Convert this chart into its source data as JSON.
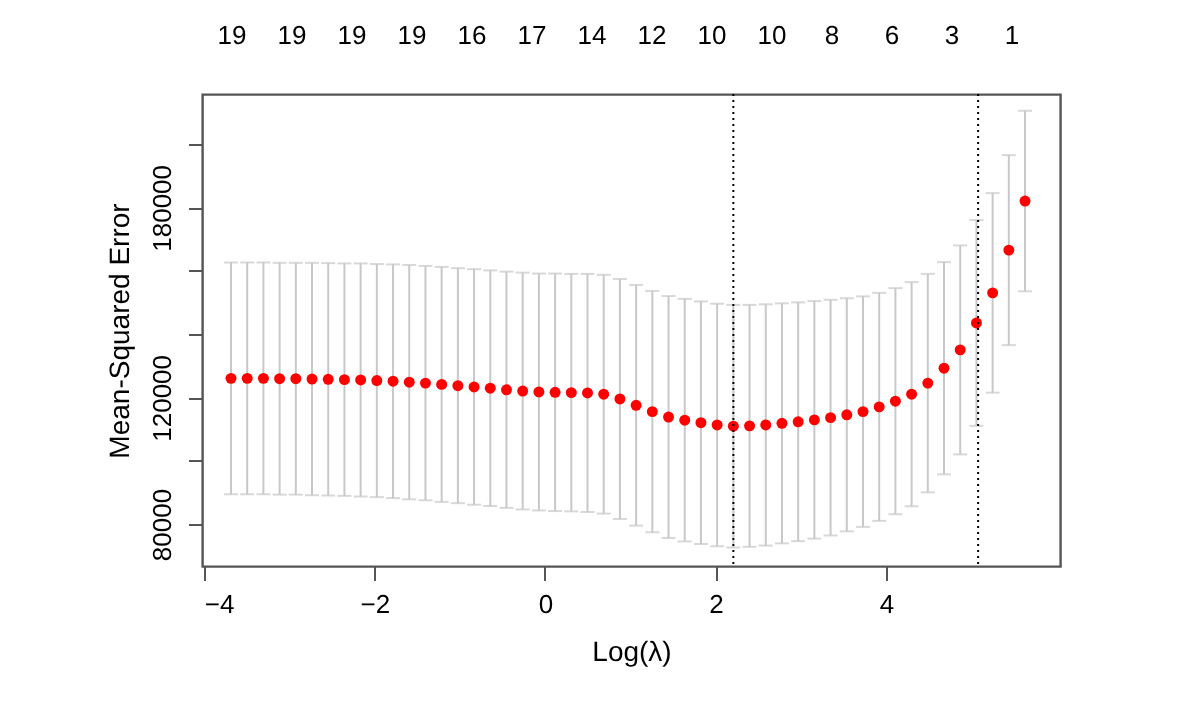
{
  "chart_data": {
    "type": "scatter",
    "xlabel": "Log(λ)",
    "ylabel": "Mean-Squared Error",
    "x": [
      -3.68,
      -3.49,
      -3.3,
      -3.11,
      -2.92,
      -2.73,
      -2.54,
      -2.35,
      -2.16,
      -1.97,
      -1.78,
      -1.59,
      -1.4,
      -1.21,
      -1.02,
      -0.83,
      -0.64,
      -0.45,
      -0.26,
      -0.07,
      0.12,
      0.31,
      0.5,
      0.69,
      0.88,
      1.07,
      1.26,
      1.45,
      1.64,
      1.83,
      2.02,
      2.21,
      2.4,
      2.59,
      2.78,
      2.97,
      3.16,
      3.35,
      3.54,
      3.73,
      3.92,
      4.11,
      4.3,
      4.49,
      4.68,
      4.87,
      5.06,
      5.25,
      5.44,
      5.63
    ],
    "series": [
      {
        "color": "#ff0000",
        "values": [
          126000,
          126000,
          126000,
          125900,
          125900,
          125800,
          125700,
          125600,
          125500,
          125300,
          125100,
          124800,
          124500,
          124100,
          123700,
          123300,
          122900,
          122400,
          122000,
          121700,
          121600,
          121500,
          121400,
          121000,
          119500,
          117500,
          115500,
          113800,
          112800,
          112000,
          111300,
          110900,
          111000,
          111300,
          111800,
          112300,
          112900,
          113600,
          114500,
          115500,
          117000,
          118800,
          121000,
          124500,
          129200,
          135000,
          143500,
          153000,
          166500,
          182000
        ],
        "errors": [
          36600,
          36600,
          36600,
          36600,
          36600,
          36700,
          36700,
          36700,
          36800,
          36800,
          36900,
          37000,
          37000,
          37100,
          37100,
          37200,
          37200,
          37300,
          37400,
          37400,
          37500,
          37500,
          37600,
          37700,
          37900,
          38000,
          38100,
          38200,
          38300,
          38300,
          38300,
          38300,
          38200,
          38100,
          37900,
          37700,
          37500,
          37200,
          36800,
          36400,
          36000,
          35700,
          35400,
          34500,
          33500,
          33000,
          32500,
          31500,
          30000,
          28500
        ]
      }
    ],
    "marker": "circle",
    "xlim": [
      -4.02,
      6.04
    ],
    "xticks": [
      -4,
      -2,
      0,
      2,
      4
    ],
    "ylim": [
      66750,
      215800
    ],
    "yticks": [
      80000,
      {
        "value": 100000,
        "label": null
      },
      120000,
      {
        "value": 140000,
        "label": null
      },
      {
        "value": 160000,
        "label": null
      },
      180000,
      {
        "value": 200000,
        "label": null
      }
    ],
    "annotations": [
      "19",
      "19",
      "19",
      "19",
      "16",
      "17",
      "14",
      "12",
      "10",
      "10",
      "8",
      "6",
      "3",
      "1"
    ],
    "ref_lines": [
      {
        "axis": "x",
        "value": 2.21,
        "color": "#000000",
        "line_style": "dotted"
      },
      {
        "axis": "x",
        "value": 5.08,
        "color": "#000000",
        "line_style": "dotted"
      }
    ],
    "grid": false
  }
}
